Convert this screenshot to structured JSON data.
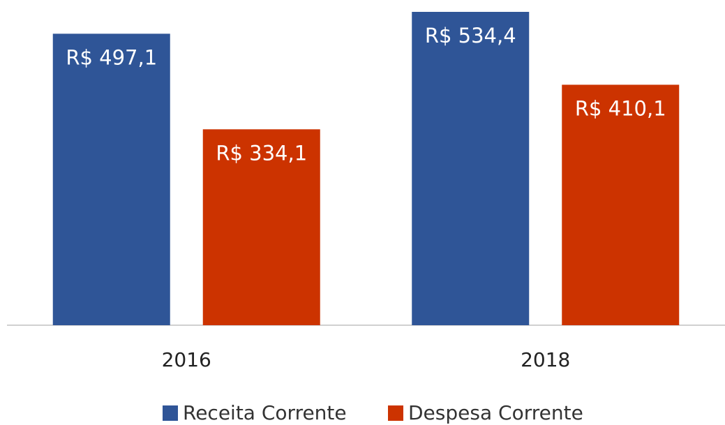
{
  "chart_data": {
    "type": "bar",
    "categories": [
      "2016",
      "2018"
    ],
    "series": [
      {
        "name": "Receita Corrente",
        "color": "#2f5597",
        "values": [
          497.1,
          534.4
        ],
        "value_labels": [
          "R$ 497,1",
          "R$ 534,4"
        ]
      },
      {
        "name": "Despesa Corrente",
        "color": "#cc3300",
        "values": [
          334.1,
          410.1
        ],
        "value_labels": [
          "R$ 334,1",
          "R$ 410,1"
        ]
      }
    ]
  }
}
